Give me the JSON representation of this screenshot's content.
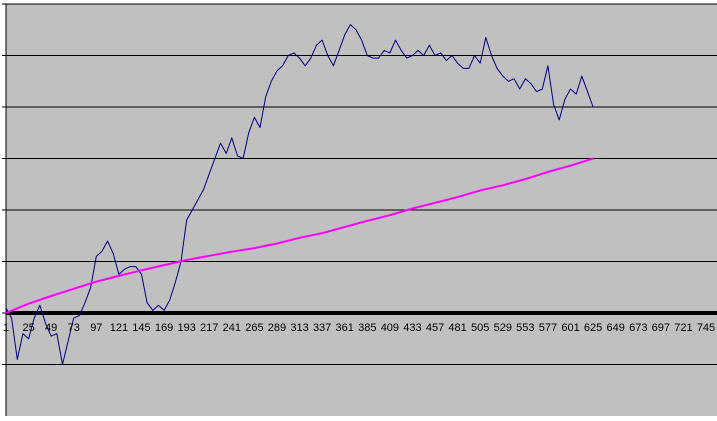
{
  "chart_data": {
    "type": "line",
    "title": "",
    "xlabel": "",
    "ylabel": "",
    "grid": true,
    "legend": "none",
    "x_tick_labels": [
      "1",
      "25",
      "49",
      "73",
      "97",
      "121",
      "145",
      "169",
      "193",
      "217",
      "241",
      "265",
      "289",
      "313",
      "337",
      "361",
      "385",
      "409",
      "433",
      "457",
      "481",
      "505",
      "529",
      "553",
      "577",
      "601",
      "625",
      "649",
      "673",
      "697",
      "721",
      "745"
    ],
    "xlim": [
      1,
      745
    ],
    "ylim": [
      -2,
      6
    ],
    "gridline_values": [
      -1,
      0,
      1,
      2,
      3,
      4,
      5,
      6
    ],
    "plot_background": "#c0c0c0",
    "series": [
      {
        "color": "#000080",
        "points": [
          [
            1,
            0.1
          ],
          [
            7,
            -0.1
          ],
          [
            13,
            -0.9
          ],
          [
            19,
            -0.4
          ],
          [
            25,
            -0.5
          ],
          [
            31,
            -0.1
          ],
          [
            37,
            0.15
          ],
          [
            43,
            -0.2
          ],
          [
            49,
            -0.45
          ],
          [
            55,
            -0.4
          ],
          [
            61,
            -1.0
          ],
          [
            67,
            -0.55
          ],
          [
            73,
            -0.1
          ],
          [
            79,
            -0.05
          ],
          [
            85,
            0.2
          ],
          [
            91,
            0.5
          ],
          [
            97,
            1.1
          ],
          [
            103,
            1.2
          ],
          [
            109,
            1.4
          ],
          [
            115,
            1.15
          ],
          [
            121,
            0.75
          ],
          [
            127,
            0.85
          ],
          [
            133,
            0.9
          ],
          [
            139,
            0.9
          ],
          [
            145,
            0.75
          ],
          [
            151,
            0.2
          ],
          [
            157,
            0.05
          ],
          [
            163,
            0.15
          ],
          [
            169,
            0.05
          ],
          [
            175,
            0.25
          ],
          [
            181,
            0.6
          ],
          [
            187,
            1.0
          ],
          [
            193,
            1.8
          ],
          [
            199,
            2.0
          ],
          [
            205,
            2.2
          ],
          [
            211,
            2.4
          ],
          [
            217,
            2.7
          ],
          [
            223,
            3.0
          ],
          [
            229,
            3.3
          ],
          [
            235,
            3.1
          ],
          [
            241,
            3.4
          ],
          [
            247,
            3.05
          ],
          [
            253,
            3.0
          ],
          [
            259,
            3.5
          ],
          [
            265,
            3.8
          ],
          [
            271,
            3.6
          ],
          [
            277,
            4.2
          ],
          [
            283,
            4.5
          ],
          [
            289,
            4.7
          ],
          [
            295,
            4.8
          ],
          [
            301,
            5.0
          ],
          [
            307,
            5.05
          ],
          [
            313,
            4.95
          ],
          [
            319,
            4.8
          ],
          [
            325,
            4.95
          ],
          [
            331,
            5.2
          ],
          [
            337,
            5.3
          ],
          [
            343,
            5.0
          ],
          [
            349,
            4.8
          ],
          [
            355,
            5.1
          ],
          [
            361,
            5.4
          ],
          [
            367,
            5.6
          ],
          [
            373,
            5.5
          ],
          [
            379,
            5.3
          ],
          [
            385,
            5.0
          ],
          [
            391,
            4.95
          ],
          [
            397,
            4.95
          ],
          [
            403,
            5.1
          ],
          [
            409,
            5.05
          ],
          [
            415,
            5.3
          ],
          [
            421,
            5.1
          ],
          [
            427,
            4.95
          ],
          [
            433,
            5.0
          ],
          [
            439,
            5.1
          ],
          [
            445,
            5.0
          ],
          [
            451,
            5.2
          ],
          [
            457,
            5.0
          ],
          [
            463,
            5.05
          ],
          [
            469,
            4.9
          ],
          [
            475,
            5.0
          ],
          [
            481,
            4.85
          ],
          [
            487,
            4.75
          ],
          [
            493,
            4.75
          ],
          [
            499,
            5.0
          ],
          [
            505,
            4.85
          ],
          [
            511,
            5.35
          ],
          [
            517,
            5.0
          ],
          [
            523,
            4.75
          ],
          [
            529,
            4.6
          ],
          [
            535,
            4.5
          ],
          [
            541,
            4.55
          ],
          [
            547,
            4.35
          ],
          [
            553,
            4.55
          ],
          [
            559,
            4.45
          ],
          [
            565,
            4.3
          ],
          [
            571,
            4.35
          ],
          [
            577,
            4.8
          ],
          [
            583,
            4.05
          ],
          [
            589,
            3.75
          ],
          [
            595,
            4.15
          ],
          [
            601,
            4.35
          ],
          [
            607,
            4.25
          ],
          [
            613,
            4.6
          ],
          [
            619,
            4.3
          ],
          [
            625,
            4.0
          ]
        ]
      },
      {
        "color": "#ff00ff",
        "points": [
          [
            1,
            0.0
          ],
          [
            25,
            0.18
          ],
          [
            49,
            0.33
          ],
          [
            73,
            0.47
          ],
          [
            97,
            0.61
          ],
          [
            121,
            0.72
          ],
          [
            145,
            0.83
          ],
          [
            169,
            0.93
          ],
          [
            193,
            1.03
          ],
          [
            217,
            1.11
          ],
          [
            241,
            1.19
          ],
          [
            265,
            1.26
          ],
          [
            289,
            1.35
          ],
          [
            313,
            1.46
          ],
          [
            337,
            1.55
          ],
          [
            361,
            1.67
          ],
          [
            385,
            1.79
          ],
          [
            409,
            1.9
          ],
          [
            433,
            2.03
          ],
          [
            457,
            2.14
          ],
          [
            481,
            2.25
          ],
          [
            505,
            2.38
          ],
          [
            529,
            2.48
          ],
          [
            553,
            2.6
          ],
          [
            577,
            2.74
          ],
          [
            601,
            2.86
          ],
          [
            625,
            3.0
          ]
        ]
      }
    ]
  }
}
